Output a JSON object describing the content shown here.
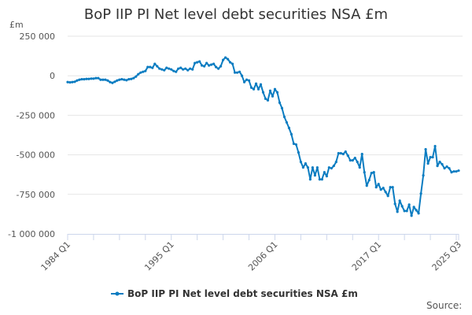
{
  "chart_data": {
    "type": "line",
    "title": "BoP IIP PI Net level debt securities NSA £m",
    "ylabel": "£m",
    "xlabel": "",
    "x_start": "1984 Q1",
    "x_end": "2025 Q3",
    "frequency": "quarterly",
    "x_tick_labels": [
      "1984 Q1",
      "1995 Q1",
      "2006 Q1",
      "2017 Q1",
      "2025 Q3"
    ],
    "y_tick_labels": [
      "250 000",
      "0",
      "-250 000",
      "-500 000",
      "-750 000",
      "-1 000 000"
    ],
    "y_ticks": [
      250000,
      0,
      -250000,
      -500000,
      -750000,
      -1000000
    ],
    "ylim": [
      -1000000,
      250000
    ],
    "grid": "horizontal",
    "legend": "bottom",
    "source_label": "Source:",
    "series": [
      {
        "name": "BoP IIP PI Net level debt securities NSA £m",
        "color": "#0a7cc1",
        "values": [
          -40000,
          -42000,
          -40000,
          -38000,
          -30000,
          -25000,
          -22000,
          -22000,
          -20000,
          -20000,
          -18000,
          -18000,
          -15000,
          -15000,
          -25000,
          -25000,
          -25000,
          -30000,
          -40000,
          -45000,
          -38000,
          -30000,
          -25000,
          -22000,
          -25000,
          -28000,
          -22000,
          -20000,
          -15000,
          -5000,
          10000,
          20000,
          25000,
          30000,
          55000,
          55000,
          50000,
          75000,
          60000,
          45000,
          40000,
          35000,
          50000,
          45000,
          40000,
          30000,
          25000,
          45000,
          50000,
          40000,
          45000,
          35000,
          45000,
          40000,
          80000,
          85000,
          90000,
          65000,
          60000,
          80000,
          65000,
          70000,
          75000,
          55000,
          45000,
          60000,
          100000,
          115000,
          105000,
          85000,
          75000,
          20000,
          20000,
          25000,
          0,
          -40000,
          -25000,
          -30000,
          -75000,
          -85000,
          -50000,
          -85000,
          -55000,
          -105000,
          -145000,
          -155000,
          -95000,
          -130000,
          -85000,
          -105000,
          -170000,
          -205000,
          -260000,
          -295000,
          -330000,
          -370000,
          -430000,
          -435000,
          -485000,
          -545000,
          -580000,
          -555000,
          -580000,
          -655000,
          -580000,
          -630000,
          -580000,
          -655000,
          -655000,
          -610000,
          -635000,
          -580000,
          -585000,
          -570000,
          -545000,
          -490000,
          -490000,
          -495000,
          -480000,
          -505000,
          -535000,
          -535000,
          -520000,
          -545000,
          -580000,
          -495000,
          -610000,
          -695000,
          -660000,
          -615000,
          -610000,
          -705000,
          -685000,
          -720000,
          -710000,
          -735000,
          -760000,
          -705000,
          -705000,
          -810000,
          -860000,
          -790000,
          -825000,
          -855000,
          -855000,
          -815000,
          -885000,
          -830000,
          -850000,
          -870000,
          -745000,
          -630000,
          -465000,
          -555000,
          -515000,
          -515000,
          -445000,
          -570000,
          -545000,
          -560000,
          -585000,
          -575000,
          -585000,
          -610000,
          -605000,
          -605000,
          -600000
        ]
      }
    ]
  }
}
